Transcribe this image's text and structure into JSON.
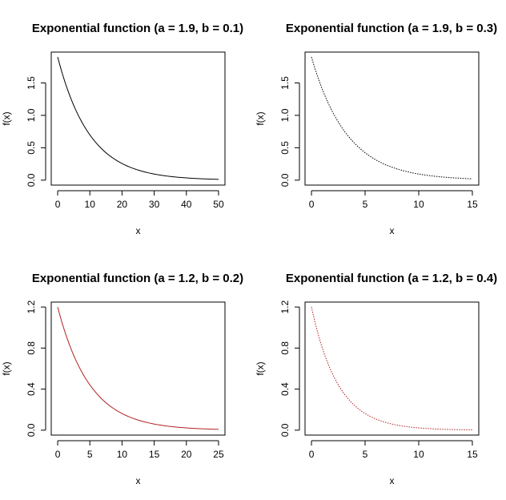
{
  "chart_data": [
    {
      "type": "line",
      "title": "Exponential function (a = 1.9, b = 0.1)",
      "xlabel": "x",
      "ylabel": "f(x)",
      "function": {
        "a": 1.9,
        "b": 0.1
      },
      "xlim": [
        0,
        50
      ],
      "ylim": [
        0,
        1.9
      ],
      "xticks": [
        0,
        10,
        20,
        30,
        40,
        50
      ],
      "yticks": [
        0.0,
        0.5,
        1.0,
        1.5
      ],
      "ytick_labels": [
        "0.0",
        "0.5",
        "1.0",
        "1.5"
      ],
      "line_color": "#000000",
      "line_style": "solid",
      "grid": false,
      "series": [
        {
          "x": [
            0,
            5,
            10,
            15,
            20,
            25,
            30,
            35,
            40,
            45,
            50
          ],
          "y": [
            1.9,
            1.152,
            0.699,
            0.424,
            0.257,
            0.156,
            0.095,
            0.057,
            0.035,
            0.021,
            0.013
          ]
        }
      ]
    },
    {
      "type": "line",
      "title": "Exponential function (a = 1.9, b = 0.3)",
      "xlabel": "x",
      "ylabel": "f(x)",
      "function": {
        "a": 1.9,
        "b": 0.3
      },
      "xlim": [
        0,
        15
      ],
      "ylim": [
        0,
        1.9
      ],
      "xticks": [
        0,
        5,
        10,
        15
      ],
      "yticks": [
        0.0,
        0.5,
        1.0,
        1.5
      ],
      "ytick_labels": [
        "0.0",
        "0.5",
        "1.0",
        "1.5"
      ],
      "line_color": "#000000",
      "line_style": "dotted",
      "grid": false,
      "series": [
        {
          "x": [
            0,
            1.5,
            3,
            4.5,
            6,
            7.5,
            9,
            10.5,
            12,
            13.5,
            15
          ],
          "y": [
            1.9,
            1.212,
            0.773,
            0.493,
            0.314,
            0.2,
            0.128,
            0.081,
            0.052,
            0.033,
            0.021
          ]
        }
      ]
    },
    {
      "type": "line",
      "title": "Exponential function (a = 1.2, b = 0.2)",
      "xlabel": "x",
      "ylabel": "f(x)",
      "function": {
        "a": 1.2,
        "b": 0.2
      },
      "xlim": [
        0,
        25
      ],
      "ylim": [
        0,
        1.2
      ],
      "xticks": [
        0,
        5,
        10,
        15,
        20,
        25
      ],
      "yticks": [
        0.0,
        0.4,
        0.8,
        1.2
      ],
      "ytick_labels": [
        "0.0",
        "0.4",
        "0.8",
        "1.2"
      ],
      "line_color": "#b22222",
      "line_style": "solid",
      "grid": false,
      "series": [
        {
          "x": [
            0,
            2.5,
            5,
            7.5,
            10,
            12.5,
            15,
            17.5,
            20,
            22.5,
            25
          ],
          "y": [
            1.2,
            0.728,
            0.441,
            0.268,
            0.162,
            0.098,
            0.06,
            0.036,
            0.022,
            0.013,
            0.008
          ]
        }
      ]
    },
    {
      "type": "line",
      "title": "Exponential function (a = 1.2, b = 0.4)",
      "xlabel": "x",
      "ylabel": "f(x)",
      "function": {
        "a": 1.2,
        "b": 0.4
      },
      "xlim": [
        0,
        15
      ],
      "ylim": [
        0,
        1.2
      ],
      "xticks": [
        0,
        5,
        10,
        15
      ],
      "yticks": [
        0.0,
        0.4,
        0.8,
        1.2
      ],
      "ytick_labels": [
        "0.0",
        "0.4",
        "0.8",
        "1.2"
      ],
      "line_color": "#b22222",
      "line_style": "dotted",
      "grid": false,
      "series": [
        {
          "x": [
            0,
            1.5,
            3,
            4.5,
            6,
            7.5,
            9,
            10.5,
            12,
            13.5,
            15
          ],
          "y": [
            1.2,
            0.659,
            0.361,
            0.198,
            0.109,
            0.06,
            0.033,
            0.018,
            0.01,
            0.005,
            0.003
          ]
        }
      ]
    }
  ]
}
